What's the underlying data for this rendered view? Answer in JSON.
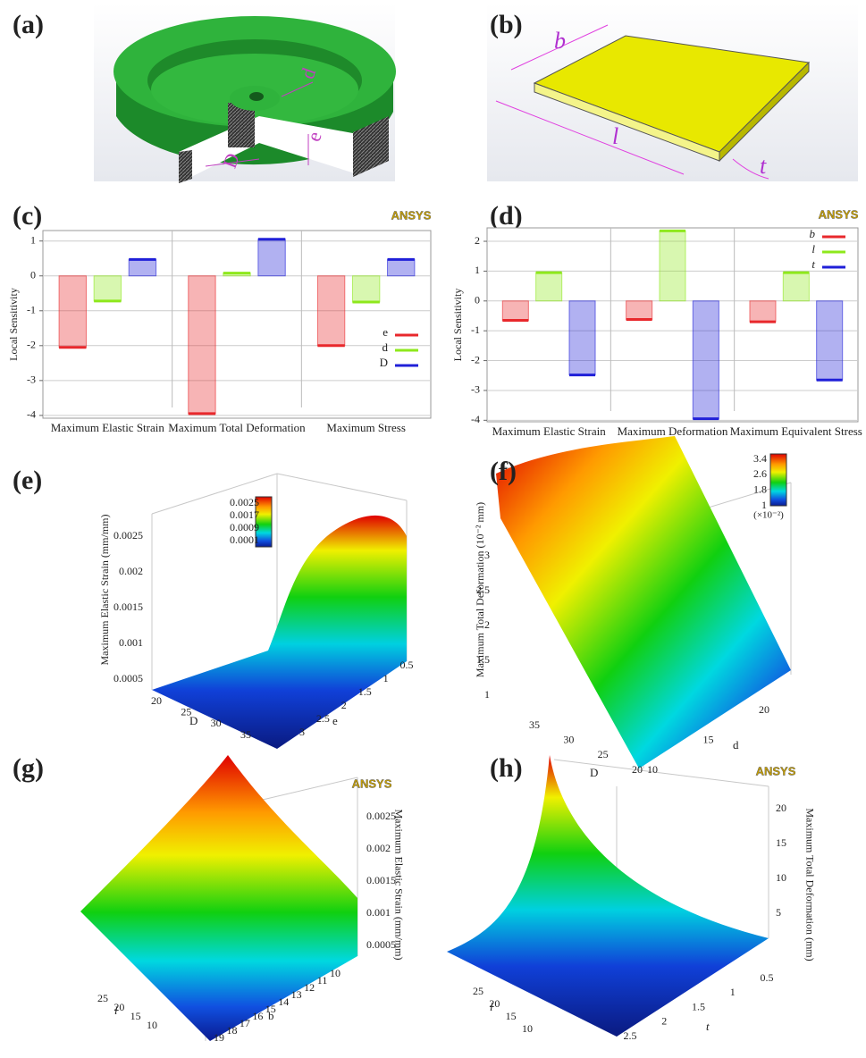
{
  "panels": [
    "(a)",
    "(b)",
    "(c)",
    "(d)",
    "(e)",
    "(f)",
    "(g)",
    "(h)"
  ],
  "cad_a_labels": [
    "d",
    "D",
    "e"
  ],
  "cad_b_labels": [
    "b",
    "l",
    "t"
  ],
  "chart_data": [
    {
      "type": "bar",
      "logo": "ANSYS",
      "ylabel": "Local Sensitivity",
      "categories": [
        "Maximum Elastic Strain",
        "Maximum Total Deformation",
        "Maximum Stress"
      ],
      "series": [
        {
          "name": "e",
          "color": "#e8282c",
          "values": [
            -2.05,
            -3.95,
            -2.0
          ]
        },
        {
          "name": "d",
          "color": "#8ee81c",
          "values": [
            -0.72,
            0.08,
            -0.75
          ]
        },
        {
          "name": "D",
          "color": "#2020d8",
          "values": [
            0.47,
            1.05,
            0.47
          ]
        }
      ],
      "ylim": [
        -4.08,
        1.3
      ],
      "yticks": [
        -4,
        -3,
        -2,
        -1,
        0,
        1
      ],
      "grid": true,
      "legend": "lower right"
    },
    {
      "type": "bar",
      "logo": "ANSYS",
      "ylabel": "Local Sensitivity",
      "categories": [
        "Maximum Elastic Strain",
        "Maximum Deformation",
        "Maximum Equivalent Stress"
      ],
      "series": [
        {
          "name": "b",
          "color": "#e8282c",
          "values": [
            -0.65,
            -0.62,
            -0.7
          ]
        },
        {
          "name": "l",
          "color": "#8ee81c",
          "values": [
            0.95,
            2.35,
            0.95
          ]
        },
        {
          "name": "t",
          "color": "#2020d8",
          "values": [
            -2.48,
            -3.95,
            -2.65
          ]
        }
      ],
      "ylim": [
        -4.05,
        2.45
      ],
      "yticks": [
        -4,
        -3,
        -2,
        -1,
        0,
        1,
        2
      ],
      "grid": true,
      "legend": "upper right"
    }
  ],
  "surfaces": [
    {
      "zlabel": "Maximum Elastic Strain (mm/mm)",
      "zticks": [
        0.0005,
        0.001,
        0.0015,
        0.002,
        0.0025
      ],
      "xlabel": "D",
      "xticks": [
        20,
        25,
        30,
        35
      ],
      "ylabel": "e",
      "yticks": [
        0.5,
        1,
        1.5,
        2,
        2.5,
        3
      ],
      "colorbar": [
        0.0025,
        0.0017,
        0.0009,
        0.0001
      ]
    },
    {
      "zlabel": "Maximum Total Deformation (10⁻² mm)",
      "zticks": [
        1,
        1.5,
        2,
        2.5,
        3
      ],
      "xlabel": "D",
      "xticks": [
        35,
        30,
        25,
        20
      ],
      "ylabel": "d",
      "yticks": [
        10,
        15,
        20
      ],
      "colorbar": [
        3.4,
        2.6,
        1.8,
        1
      ],
      "colorbar_unit": "(×10⁻²)"
    },
    {
      "zlabel": "Maximum Elastic Strain (mm/mm)",
      "zticks": [
        0.0005,
        0.001,
        0.0015,
        0.002,
        0.0025
      ],
      "xlabel": "l",
      "xticks": [
        25,
        20,
        15,
        10
      ],
      "ylabel": "b",
      "yticks": [
        19,
        18,
        17,
        16,
        15,
        14,
        13,
        12,
        11,
        10
      ],
      "logo": "ANSYS"
    },
    {
      "zlabel": "Maximum Total Deformation (mm)",
      "zticks": [
        5,
        10,
        15,
        20
      ],
      "xlabel": "l",
      "xticks": [
        25,
        20,
        15,
        10
      ],
      "ylabel": "t",
      "yticks": [
        2.5,
        2,
        1.5,
        1,
        0.5
      ],
      "logo": "ANSYS"
    }
  ]
}
